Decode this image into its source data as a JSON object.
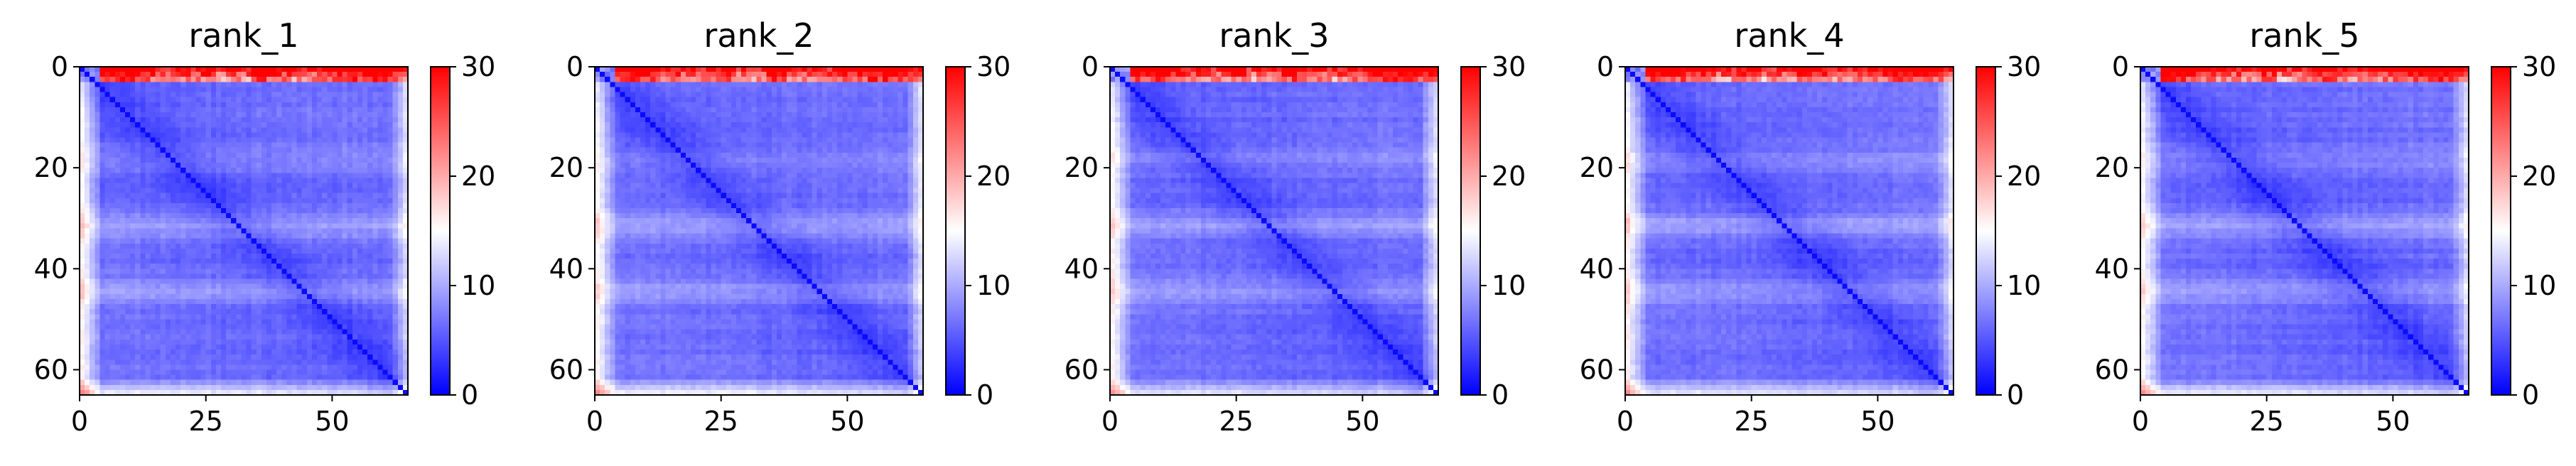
{
  "chart_data": [
    {
      "type": "heatmap",
      "title": "rank_1",
      "xlim": [
        0,
        65
      ],
      "ylim": [
        65,
        0
      ],
      "xticks": [
        0,
        25,
        50
      ],
      "yticks": [
        0,
        20,
        40,
        60
      ],
      "colorbar": {
        "vmin": 0,
        "vmax": 30,
        "ticks": [
          0,
          10,
          20,
          30
        ],
        "colors": [
          "#0000ff",
          "#ffffff",
          "#ff0000"
        ]
      },
      "grid": false
    },
    {
      "type": "heatmap",
      "title": "rank_2",
      "xlim": [
        0,
        65
      ],
      "ylim": [
        65,
        0
      ],
      "xticks": [
        0,
        25,
        50
      ],
      "yticks": [
        0,
        20,
        40,
        60
      ],
      "colorbar": {
        "vmin": 0,
        "vmax": 30,
        "ticks": [
          0,
          10,
          20,
          30
        ],
        "colors": [
          "#0000ff",
          "#ffffff",
          "#ff0000"
        ]
      },
      "grid": false
    },
    {
      "type": "heatmap",
      "title": "rank_3",
      "xlim": [
        0,
        65
      ],
      "ylim": [
        65,
        0
      ],
      "xticks": [
        0,
        25,
        50
      ],
      "yticks": [
        0,
        20,
        40,
        60
      ],
      "colorbar": {
        "vmin": 0,
        "vmax": 30,
        "ticks": [
          0,
          10,
          20,
          30
        ],
        "colors": [
          "#0000ff",
          "#ffffff",
          "#ff0000"
        ]
      },
      "grid": false
    },
    {
      "type": "heatmap",
      "title": "rank_4",
      "xlim": [
        0,
        65
      ],
      "ylim": [
        65,
        0
      ],
      "xticks": [
        0,
        25,
        50
      ],
      "yticks": [
        0,
        20,
        40,
        60
      ],
      "colorbar": {
        "vmin": 0,
        "vmax": 30,
        "ticks": [
          0,
          10,
          20,
          30
        ],
        "colors": [
          "#0000ff",
          "#ffffff",
          "#ff0000"
        ]
      },
      "grid": false
    },
    {
      "type": "heatmap",
      "title": "rank_5",
      "xlim": [
        0,
        65
      ],
      "ylim": [
        65,
        0
      ],
      "xticks": [
        0,
        25,
        50
      ],
      "yticks": [
        0,
        20,
        40,
        60
      ],
      "colorbar": {
        "vmin": 0,
        "vmax": 30,
        "ticks": [
          0,
          10,
          20,
          30
        ],
        "colors": [
          "#0000ff",
          "#ffffff",
          "#ff0000"
        ]
      },
      "grid": false
    }
  ]
}
